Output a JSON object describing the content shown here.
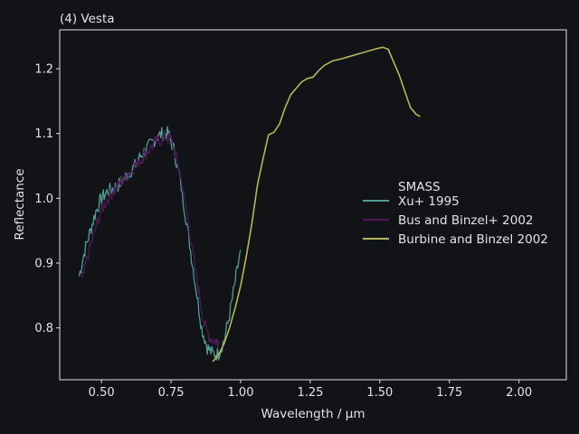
{
  "colors": {
    "background": "#121316",
    "axis": "#e0e0e0",
    "text": "#e4e4e4"
  },
  "chart_data": {
    "type": "line",
    "title": "(4) Vesta",
    "xlabel": "Wavelength / µm",
    "ylabel": "Reflectance",
    "xlim": [
      0.35,
      2.17
    ],
    "ylim": [
      0.72,
      1.26
    ],
    "x_ticks": [
      0.5,
      0.75,
      1.0,
      1.25,
      1.5,
      1.75,
      2.0
    ],
    "x_tick_labels": [
      "0.50",
      "0.75",
      "1.00",
      "1.25",
      "1.50",
      "1.75",
      "2.00"
    ],
    "y_ticks": [
      0.8,
      0.9,
      1.0,
      1.1,
      1.2
    ],
    "y_tick_labels": [
      "0.8",
      "0.9",
      "1.0",
      "1.1",
      "1.2"
    ],
    "grid": false,
    "legend": {
      "title": "SMASS",
      "placement": "center-right"
    },
    "series": [
      {
        "name": "Xu+ 1995",
        "color": "#4f9d94",
        "noisy": true,
        "x": [
          0.42,
          0.44,
          0.46,
          0.48,
          0.5,
          0.52,
          0.54,
          0.56,
          0.58,
          0.6,
          0.62,
          0.64,
          0.66,
          0.68,
          0.7,
          0.72,
          0.74,
          0.76,
          0.78,
          0.8,
          0.82,
          0.84,
          0.86,
          0.88,
          0.9,
          0.92,
          0.94,
          0.96,
          0.98,
          1.0
        ],
        "y": [
          0.88,
          0.92,
          0.95,
          0.98,
          1.0,
          1.01,
          1.015,
          1.02,
          1.03,
          1.04,
          1.05,
          1.065,
          1.075,
          1.085,
          1.095,
          1.1,
          1.1,
          1.075,
          1.035,
          0.98,
          0.92,
          0.86,
          0.8,
          0.77,
          0.76,
          0.76,
          0.78,
          0.82,
          0.87,
          0.92
        ]
      },
      {
        "name": "Bus and Binzel+ 2002",
        "color": "#4a1a55",
        "noisy": true,
        "x": [
          0.43,
          0.45,
          0.47,
          0.49,
          0.51,
          0.53,
          0.55,
          0.57,
          0.59,
          0.61,
          0.63,
          0.65,
          0.67,
          0.69,
          0.71,
          0.73,
          0.75,
          0.77,
          0.79,
          0.81,
          0.83,
          0.85,
          0.87,
          0.89,
          0.91,
          0.92
        ],
        "y": [
          0.87,
          0.91,
          0.94,
          0.97,
          0.99,
          1.005,
          1.015,
          1.025,
          1.035,
          1.045,
          1.055,
          1.065,
          1.075,
          1.085,
          1.09,
          1.095,
          1.09,
          1.06,
          1.02,
          0.97,
          0.91,
          0.855,
          0.805,
          0.785,
          0.78,
          0.78
        ]
      },
      {
        "name": "Burbine and Binzel 2002",
        "color": "#b8b45a",
        "noisy": false,
        "x": [
          0.9,
          0.92,
          0.94,
          0.96,
          0.98,
          1.0,
          1.02,
          1.04,
          1.06,
          1.08,
          1.1,
          1.12,
          1.14,
          1.16,
          1.18,
          1.2,
          1.22,
          1.24,
          1.26,
          1.28,
          1.3,
          1.33,
          1.36,
          1.4,
          1.44,
          1.48,
          1.51,
          1.53,
          1.55,
          1.57,
          1.59,
          1.61,
          1.63,
          1.645
        ],
        "y": [
          0.748,
          0.758,
          0.775,
          0.8,
          0.83,
          0.865,
          0.91,
          0.96,
          1.02,
          1.06,
          1.098,
          1.102,
          1.115,
          1.14,
          1.16,
          1.17,
          1.18,
          1.185,
          1.187,
          1.197,
          1.205,
          1.212,
          1.215,
          1.22,
          1.225,
          1.23,
          1.233,
          1.23,
          1.21,
          1.19,
          1.165,
          1.14,
          1.13,
          1.126
        ]
      }
    ]
  }
}
